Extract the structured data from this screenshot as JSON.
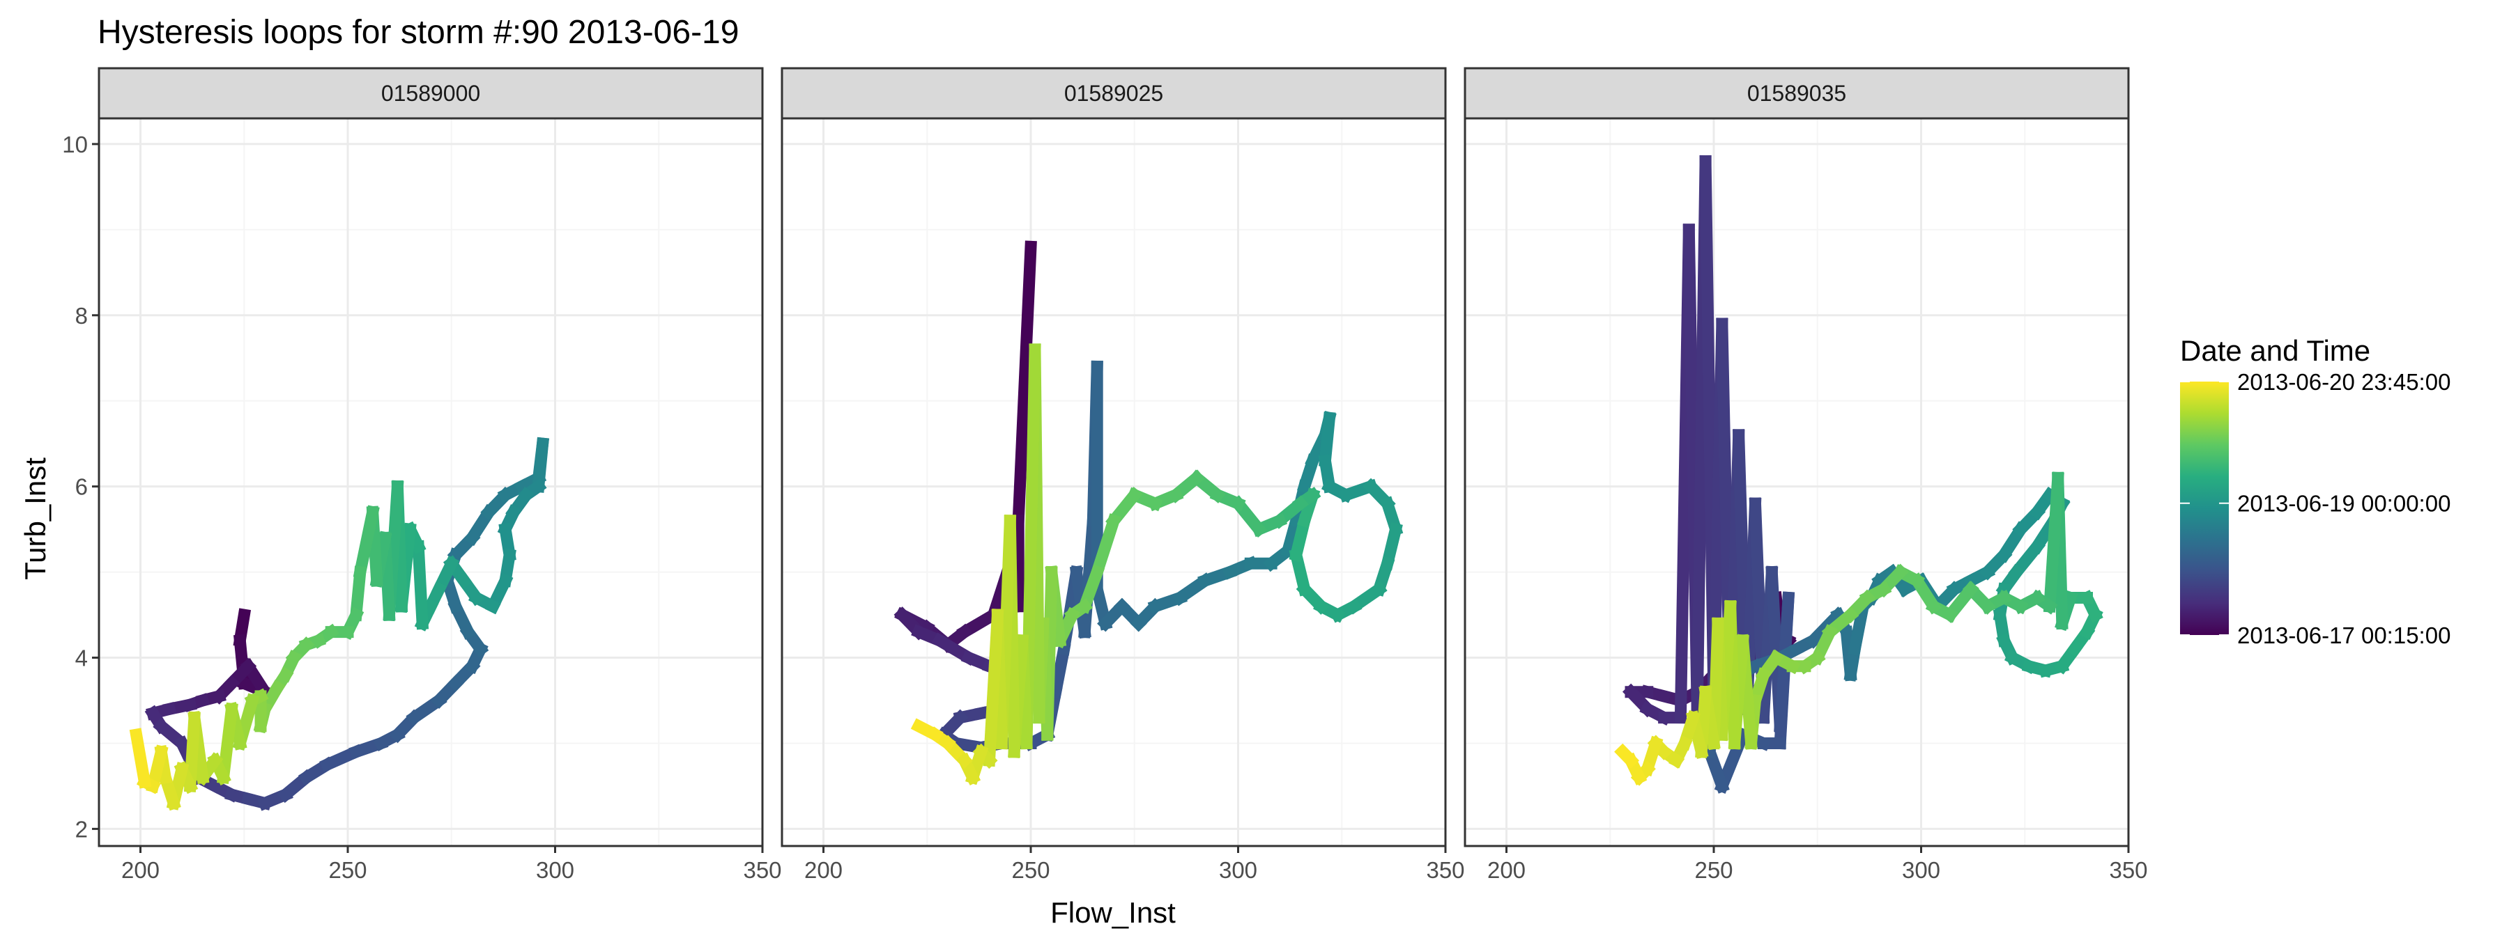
{
  "chart_data": {
    "type": "line",
    "title": "Hysteresis loops for storm #:90   2013-06-19",
    "xlabel": "Flow_Inst",
    "ylabel": "Turb_Inst",
    "xlim": [
      190,
      350
    ],
    "ylim": [
      1.8,
      10.3
    ],
    "x_ticks": [
      200,
      250,
      300,
      350
    ],
    "y_ticks": [
      2,
      4,
      6,
      8,
      10
    ],
    "grid": true,
    "colors": {
      "viridis": [
        "#440154",
        "#472d7b",
        "#3b528b",
        "#2c728e",
        "#21918c",
        "#28ae80",
        "#5ec962",
        "#addc30",
        "#fde725"
      ],
      "panel_border": "#333333",
      "strip_fill": "#d9d9d9",
      "grid_major": "#ebebeb",
      "grid_minor": "#f5f5f5"
    },
    "legend": {
      "title": "Date and Time",
      "placement": "right",
      "labels": [
        {
          "t": 1.0,
          "text": "2013-06-20 23:45:00"
        },
        {
          "t": 0.52,
          "text": "2013-06-19 00:00:00"
        },
        {
          "t": 0.0,
          "text": "2013-06-17 00:15:00"
        }
      ]
    },
    "panels": [
      {
        "name": "01589000",
        "points": [
          [
            225,
            4.5
          ],
          [
            224,
            4.2
          ],
          [
            225,
            3.7
          ],
          [
            230,
            3.6
          ],
          [
            226,
            3.9
          ],
          [
            222,
            3.7
          ],
          [
            219,
            3.55
          ],
          [
            215,
            3.5
          ],
          [
            212,
            3.45
          ],
          [
            207,
            3.4
          ],
          [
            203,
            3.35
          ],
          [
            205,
            3.2
          ],
          [
            210,
            3.0
          ],
          [
            212,
            2.8
          ],
          [
            214,
            2.6
          ],
          [
            218,
            2.5
          ],
          [
            222,
            2.4
          ],
          [
            226,
            2.35
          ],
          [
            230,
            2.3
          ],
          [
            235,
            2.4
          ],
          [
            240,
            2.6
          ],
          [
            245,
            2.75
          ],
          [
            252,
            2.9
          ],
          [
            258,
            3.0
          ],
          [
            262,
            3.1
          ],
          [
            266,
            3.3
          ],
          [
            272,
            3.5
          ],
          [
            276,
            3.7
          ],
          [
            280,
            3.9
          ],
          [
            282,
            4.1
          ],
          [
            279,
            4.3
          ],
          [
            276,
            4.6
          ],
          [
            274,
            4.9
          ],
          [
            276,
            5.2
          ],
          [
            280,
            5.4
          ],
          [
            284,
            5.7
          ],
          [
            288,
            5.9
          ],
          [
            292,
            6.0
          ],
          [
            296,
            6.1
          ],
          [
            297,
            6.5
          ],
          [
            296,
            6.0
          ],
          [
            293,
            5.9
          ],
          [
            290,
            5.7
          ],
          [
            288,
            5.5
          ],
          [
            289,
            5.2
          ],
          [
            288,
            4.9
          ],
          [
            285,
            4.6
          ],
          [
            281,
            4.7
          ],
          [
            278,
            4.9
          ],
          [
            275,
            5.1
          ],
          [
            272,
            4.8
          ],
          [
            270,
            4.6
          ],
          [
            268,
            4.4
          ],
          [
            267,
            5.3
          ],
          [
            265,
            5.5
          ],
          [
            263,
            4.6
          ],
          [
            262,
            6.0
          ],
          [
            260,
            4.5
          ],
          [
            259,
            5.4
          ],
          [
            257,
            4.9
          ],
          [
            256,
            5.7
          ],
          [
            253,
            5.0
          ],
          [
            252,
            4.5
          ],
          [
            250,
            4.3
          ],
          [
            246,
            4.3
          ],
          [
            243,
            4.2
          ],
          [
            240,
            4.15
          ],
          [
            237,
            4.0
          ],
          [
            235,
            3.8
          ],
          [
            233,
            3.65
          ],
          [
            230,
            3.4
          ],
          [
            229,
            3.2
          ],
          [
            229,
            3.55
          ],
          [
            227,
            3.5
          ],
          [
            224,
            3.0
          ],
          [
            222,
            3.4
          ],
          [
            220,
            2.6
          ],
          [
            218,
            2.8
          ],
          [
            215,
            2.6
          ],
          [
            213,
            3.3
          ],
          [
            212,
            2.5
          ],
          [
            210,
            2.7
          ],
          [
            208,
            2.3
          ],
          [
            206,
            2.6
          ],
          [
            205,
            2.9
          ],
          [
            203,
            2.5
          ],
          [
            201,
            2.55
          ],
          [
            199,
            3.1
          ]
        ]
      },
      {
        "name": "01589025",
        "points": [
          [
            250,
            8.8
          ],
          [
            247,
            5.6
          ],
          [
            247,
            4.6
          ],
          [
            245,
            5.1
          ],
          [
            241,
            4.5
          ],
          [
            234,
            4.3
          ],
          [
            230,
            4.15
          ],
          [
            225,
            4.35
          ],
          [
            219,
            4.5
          ],
          [
            223,
            4.3
          ],
          [
            228,
            4.2
          ],
          [
            235,
            4.0
          ],
          [
            240,
            3.9
          ],
          [
            246,
            3.8
          ],
          [
            250,
            3.75
          ],
          [
            248,
            3.6
          ],
          [
            243,
            3.4
          ],
          [
            238,
            3.35
          ],
          [
            233,
            3.3
          ],
          [
            229,
            3.1
          ],
          [
            232,
            3.0
          ],
          [
            238,
            2.95
          ],
          [
            243,
            3.0
          ],
          [
            250,
            3.0
          ],
          [
            254,
            3.1
          ],
          [
            256,
            3.6
          ],
          [
            258,
            4.1
          ],
          [
            261,
            5.0
          ],
          [
            263,
            4.3
          ],
          [
            265,
            5.6
          ],
          [
            266,
            7.4
          ],
          [
            266,
            4.8
          ],
          [
            268,
            4.4
          ],
          [
            272,
            4.6
          ],
          [
            276,
            4.4
          ],
          [
            280,
            4.6
          ],
          [
            286,
            4.7
          ],
          [
            292,
            4.9
          ],
          [
            298,
            5.0
          ],
          [
            303,
            5.1
          ],
          [
            308,
            5.1
          ],
          [
            312,
            5.25
          ],
          [
            314,
            5.6
          ],
          [
            316,
            6.0
          ],
          [
            318,
            6.3
          ],
          [
            321,
            6.6
          ],
          [
            322,
            6.8
          ],
          [
            321,
            6.3
          ],
          [
            322,
            6.0
          ],
          [
            326,
            5.9
          ],
          [
            332,
            6.0
          ],
          [
            336,
            5.8
          ],
          [
            338,
            5.5
          ],
          [
            336,
            5.1
          ],
          [
            334,
            4.8
          ],
          [
            328,
            4.6
          ],
          [
            324,
            4.5
          ],
          [
            320,
            4.6
          ],
          [
            316,
            4.8
          ],
          [
            314,
            5.2
          ],
          [
            316,
            5.6
          ],
          [
            318,
            5.9
          ],
          [
            315,
            5.8
          ],
          [
            310,
            5.6
          ],
          [
            305,
            5.5
          ],
          [
            300,
            5.8
          ],
          [
            295,
            5.9
          ],
          [
            290,
            6.1
          ],
          [
            285,
            5.9
          ],
          [
            280,
            5.8
          ],
          [
            275,
            5.9
          ],
          [
            270,
            5.6
          ],
          [
            266,
            5.0
          ],
          [
            263,
            4.6
          ],
          [
            260,
            4.5
          ],
          [
            257,
            4.2
          ],
          [
            255,
            5.0
          ],
          [
            254,
            3.1
          ],
          [
            253,
            4.4
          ],
          [
            252,
            3.3
          ],
          [
            251,
            7.6
          ],
          [
            249,
            3.0
          ],
          [
            248,
            4.2
          ],
          [
            246,
            2.9
          ],
          [
            245,
            5.6
          ],
          [
            243,
            3.0
          ],
          [
            242,
            4.5
          ],
          [
            240,
            2.8
          ],
          [
            238,
            2.9
          ],
          [
            236,
            2.6
          ],
          [
            234,
            2.8
          ],
          [
            232,
            2.9
          ],
          [
            230,
            3.0
          ],
          [
            227,
            3.1
          ],
          [
            223,
            3.2
          ]
        ]
      },
      {
        "name": "01589035",
        "points": [
          [
            265,
            4.7
          ],
          [
            266,
            4.3
          ],
          [
            268,
            4.2
          ],
          [
            266,
            4.0
          ],
          [
            262,
            4.1
          ],
          [
            258,
            4.0
          ],
          [
            254,
            4.0
          ],
          [
            250,
            3.8
          ],
          [
            246,
            3.6
          ],
          [
            242,
            3.5
          ],
          [
            238,
            3.55
          ],
          [
            234,
            3.6
          ],
          [
            230,
            3.6
          ],
          [
            234,
            3.4
          ],
          [
            238,
            3.3
          ],
          [
            242,
            3.3
          ],
          [
            244,
            9.0
          ],
          [
            246,
            3.4
          ],
          [
            248,
            9.8
          ],
          [
            250,
            3.5
          ],
          [
            252,
            7.9
          ],
          [
            254,
            3.3
          ],
          [
            256,
            6.6
          ],
          [
            258,
            3.4
          ],
          [
            260,
            5.8
          ],
          [
            262,
            3.3
          ],
          [
            264,
            5.0
          ],
          [
            266,
            3.2
          ],
          [
            268,
            4.7
          ],
          [
            266,
            3.0
          ],
          [
            262,
            3.0
          ],
          [
            257,
            3.1
          ],
          [
            252,
            2.5
          ],
          [
            249,
            2.9
          ],
          [
            250,
            3.3
          ],
          [
            252,
            3.6
          ],
          [
            256,
            3.8
          ],
          [
            260,
            3.9
          ],
          [
            266,
            4.0
          ],
          [
            270,
            4.1
          ],
          [
            274,
            4.2
          ],
          [
            278,
            4.4
          ],
          [
            280,
            4.5
          ],
          [
            282,
            4.3
          ],
          [
            283,
            3.8
          ],
          [
            284,
            4.1
          ],
          [
            286,
            4.6
          ],
          [
            288,
            4.7
          ],
          [
            290,
            4.9
          ],
          [
            293,
            5.0
          ],
          [
            296,
            4.8
          ],
          [
            300,
            4.9
          ],
          [
            304,
            4.6
          ],
          [
            308,
            4.8
          ],
          [
            312,
            4.9
          ],
          [
            316,
            5.0
          ],
          [
            320,
            5.2
          ],
          [
            324,
            5.5
          ],
          [
            328,
            5.7
          ],
          [
            331,
            5.9
          ],
          [
            334,
            5.8
          ],
          [
            332,
            5.6
          ],
          [
            328,
            5.3
          ],
          [
            323,
            5.0
          ],
          [
            320,
            4.8
          ],
          [
            319,
            4.5
          ],
          [
            320,
            4.2
          ],
          [
            322,
            4.0
          ],
          [
            326,
            3.9
          ],
          [
            330,
            3.85
          ],
          [
            334,
            3.9
          ],
          [
            337,
            4.1
          ],
          [
            340,
            4.3
          ],
          [
            342,
            4.5
          ],
          [
            340,
            4.7
          ],
          [
            336,
            4.7
          ],
          [
            334,
            4.4
          ],
          [
            333,
            6.1
          ],
          [
            331,
            4.6
          ],
          [
            328,
            4.7
          ],
          [
            324,
            4.6
          ],
          [
            320,
            4.7
          ],
          [
            316,
            4.6
          ],
          [
            312,
            4.8
          ],
          [
            307,
            4.5
          ],
          [
            303,
            4.6
          ],
          [
            299,
            4.9
          ],
          [
            295,
            5.0
          ],
          [
            291,
            4.8
          ],
          [
            287,
            4.7
          ],
          [
            283,
            4.5
          ],
          [
            278,
            4.3
          ],
          [
            275,
            4.0
          ],
          [
            272,
            3.9
          ],
          [
            269,
            3.9
          ],
          [
            265,
            4.0
          ],
          [
            262,
            3.8
          ],
          [
            260,
            3.5
          ],
          [
            259,
            3.0
          ],
          [
            257,
            4.2
          ],
          [
            255,
            3.0
          ],
          [
            254,
            4.6
          ],
          [
            252,
            3.1
          ],
          [
            251,
            4.4
          ],
          [
            250,
            3.0
          ],
          [
            248,
            3.6
          ],
          [
            247,
            2.9
          ],
          [
            245,
            3.3
          ],
          [
            243,
            3.0
          ],
          [
            241,
            2.8
          ],
          [
            238,
            2.9
          ],
          [
            236,
            3.0
          ],
          [
            234,
            2.7
          ],
          [
            232,
            2.6
          ],
          [
            230,
            2.8
          ],
          [
            228,
            2.9
          ]
        ]
      }
    ]
  }
}
